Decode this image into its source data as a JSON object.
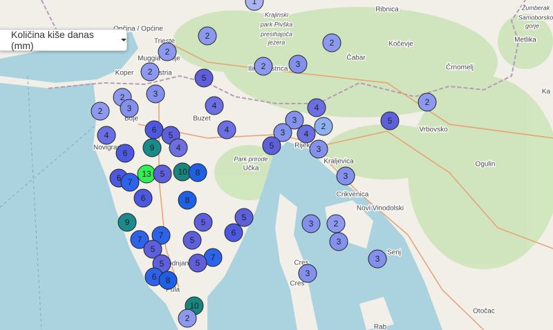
{
  "control": {
    "label": "Količina kiše danas (mm)"
  },
  "places": [
    "Opčina / Općine",
    "Trieste",
    "Muggia / Milje",
    "Koper",
    "Istria",
    "Ribnica",
    "Kočevje",
    "Čabar",
    "Črnomelj",
    "Metlika",
    "Žumberak",
    "Samoborsko",
    "gorje",
    "Krajinski",
    "park Pivška",
    "presihajoča",
    "jezera",
    "Ilirska",
    "Bistrica",
    "Buje",
    "Novigrad",
    "Buzet",
    "Park prirode",
    "Učka",
    "Rijeka",
    "Kraljevica",
    "Crikvenica",
    "Novi Vinodolski",
    "Senj",
    "Ogulin",
    "Vrbovsko",
    "Ka",
    "Cres",
    "Cres",
    "Rab",
    "Otočac",
    "Pula",
    "Vodnjan"
  ],
  "markers": [
    {
      "value": 1,
      "color": "#a9b3f0"
    },
    {
      "value": 2,
      "color": "#8d99ee"
    },
    {
      "value": 2,
      "color": "#8d99ee"
    },
    {
      "value": 2,
      "color": "#8d99ee"
    },
    {
      "value": 2,
      "color": "#8d99ee"
    },
    {
      "value": 2,
      "color": "#8d99ee"
    },
    {
      "value": 3,
      "color": "#8390ec"
    },
    {
      "value": 5,
      "color": "#5d5fdb"
    },
    {
      "value": 3,
      "color": "#8390ec"
    },
    {
      "value": 2,
      "color": "#8d99ee"
    },
    {
      "value": 3,
      "color": "#8390ec"
    },
    {
      "value": 2,
      "color": "#8d99ee"
    },
    {
      "value": 4,
      "color": "#6b6fe2"
    },
    {
      "value": 4,
      "color": "#6b6fe2"
    },
    {
      "value": 2,
      "color": "#8d99ee"
    },
    {
      "value": 5,
      "color": "#5d5fdb"
    },
    {
      "value": 3,
      "color": "#8390ec"
    },
    {
      "value": 4,
      "color": "#6b6fe2"
    },
    {
      "value": 6,
      "color": "#4d58e0"
    },
    {
      "value": 5,
      "color": "#5d5fdb"
    },
    {
      "value": 4,
      "color": "#6b6fe2"
    },
    {
      "value": 3,
      "color": "#8390ec"
    },
    {
      "value": 4,
      "color": "#6b6fe2"
    },
    {
      "value": 2,
      "color": "#8fb0f0"
    },
    {
      "value": 9,
      "color": "#1a8a8a"
    },
    {
      "value": 4,
      "color": "#6b6fe2"
    },
    {
      "value": 5,
      "color": "#5d5fdb"
    },
    {
      "value": 3,
      "color": "#8390ec"
    },
    {
      "value": 6,
      "color": "#4d58e0"
    },
    {
      "value": 13,
      "color": "#33ee55"
    },
    {
      "value": 5,
      "color": "#5d5fdb"
    },
    {
      "value": 10,
      "color": "#16867e"
    },
    {
      "value": 8,
      "color": "#1f5fe6"
    },
    {
      "value": 6,
      "color": "#4d58e0"
    },
    {
      "value": 7,
      "color": "#2d62ea"
    },
    {
      "value": 6,
      "color": "#4d58e0"
    },
    {
      "value": 3,
      "color": "#8390ec"
    },
    {
      "value": 8,
      "color": "#1f5fe6"
    },
    {
      "value": 9,
      "color": "#1a8a8a"
    },
    {
      "value": 5,
      "color": "#5d5fdb"
    },
    {
      "value": 5,
      "color": "#5d5fdb"
    },
    {
      "value": 6,
      "color": "#4d58e0"
    },
    {
      "value": 3,
      "color": "#8390ec"
    },
    {
      "value": 2,
      "color": "#8d99ee"
    },
    {
      "value": 3,
      "color": "#8390ec"
    },
    {
      "value": 7,
      "color": "#2d62ea"
    },
    {
      "value": 7,
      "color": "#2d62ea"
    },
    {
      "value": 5,
      "color": "#5d5fdb"
    },
    {
      "value": 5,
      "color": "#5d5fdb"
    },
    {
      "value": 7,
      "color": "#2d62ea"
    },
    {
      "value": 5,
      "color": "#5d5fdb"
    },
    {
      "value": 5,
      "color": "#5d5fdb"
    },
    {
      "value": 3,
      "color": "#8390ec"
    },
    {
      "value": 3,
      "color": "#8390ec"
    },
    {
      "value": 6,
      "color": "#2d62ea"
    },
    {
      "value": 8,
      "color": "#1f5fe6"
    },
    {
      "value": 10,
      "color": "#16867e"
    },
    {
      "value": 2,
      "color": "#8d99ee"
    }
  ]
}
